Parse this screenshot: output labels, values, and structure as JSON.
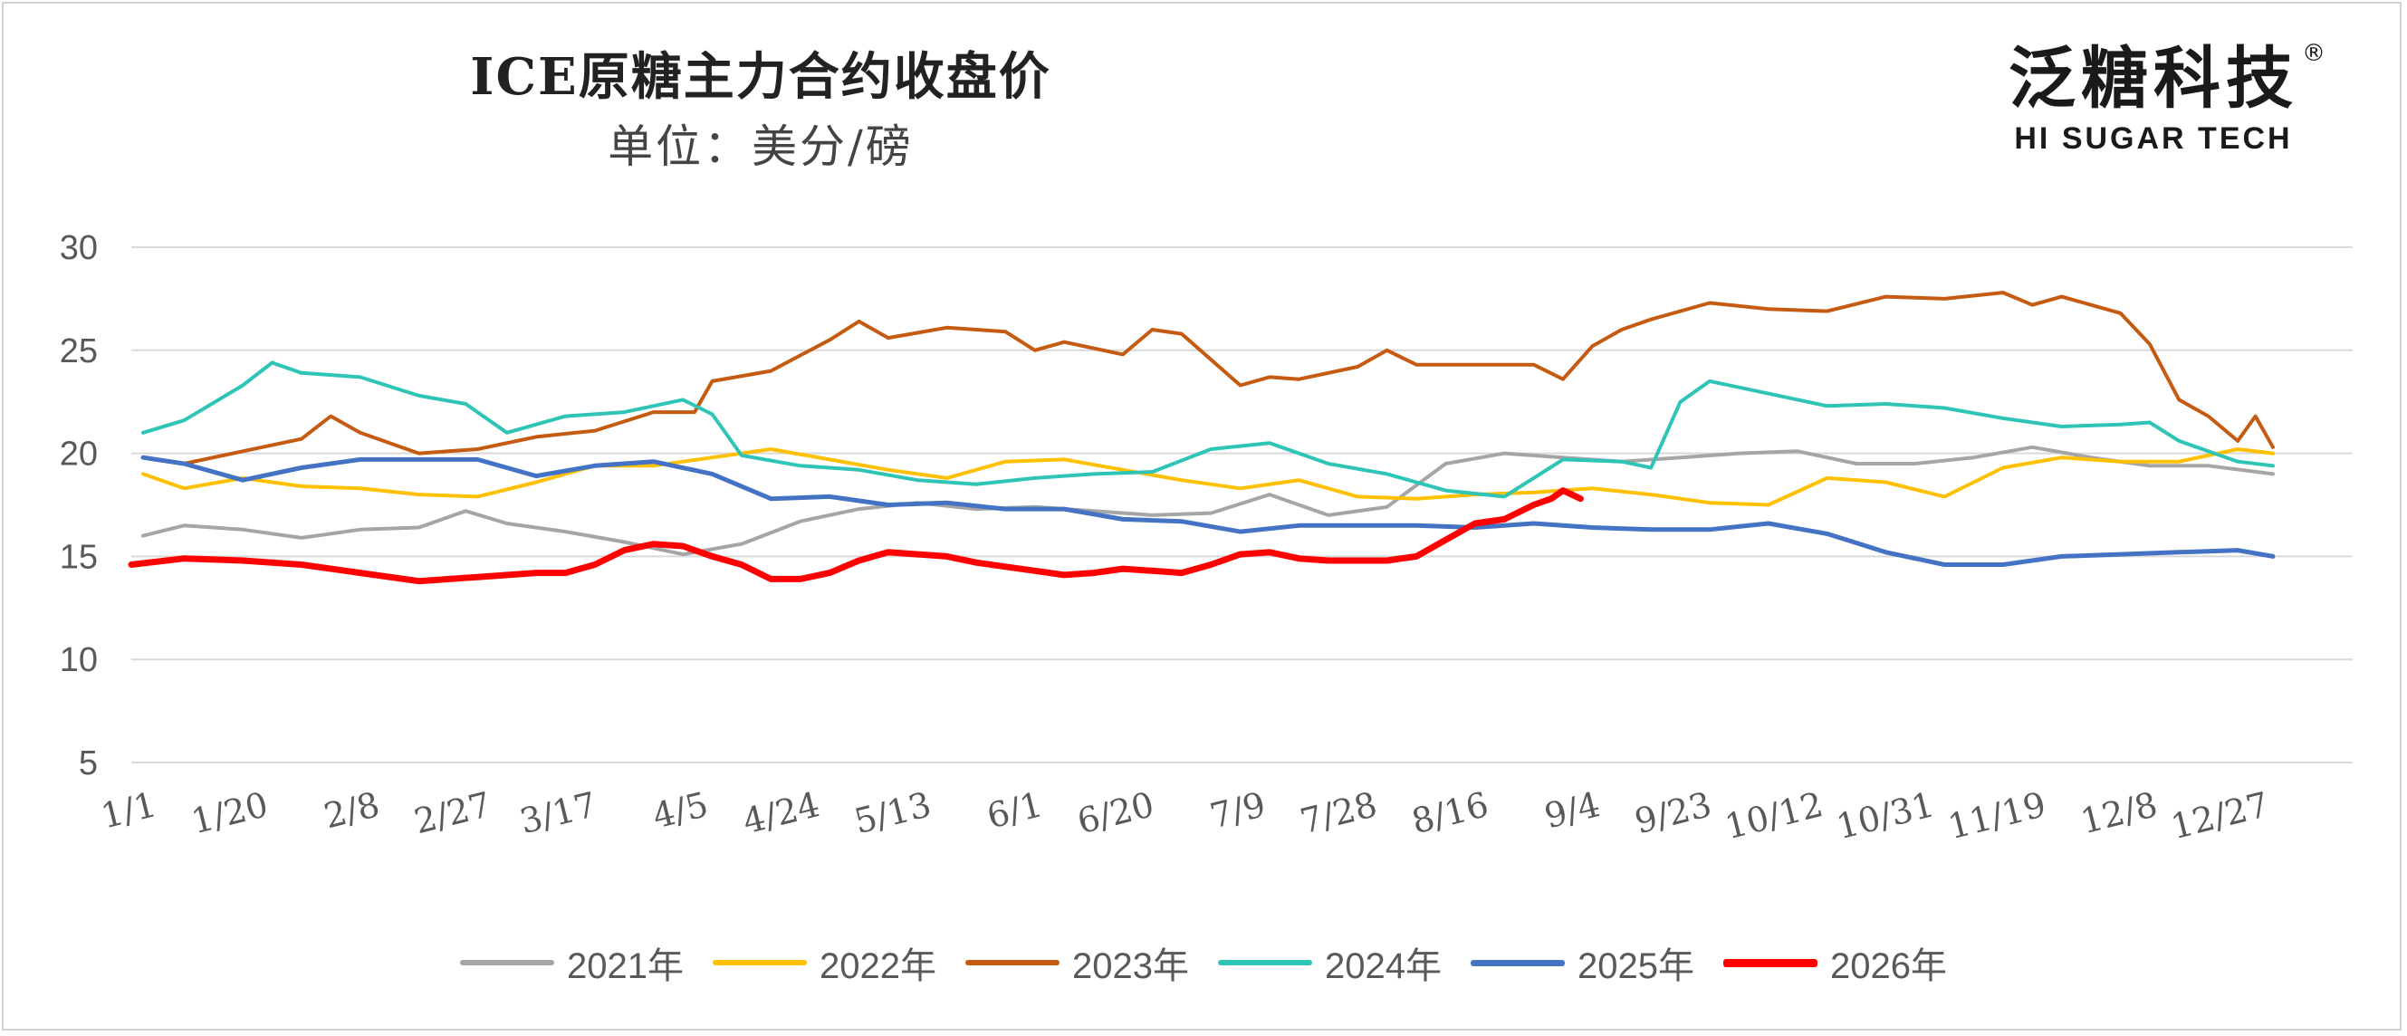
{
  "chart_data": {
    "type": "line",
    "title": "ICE原糖主力合约收盘价",
    "subtitle": "单位：美分/磅",
    "ylim": [
      5,
      30
    ],
    "yticks": [
      30,
      25,
      20,
      15,
      10,
      5
    ],
    "xlim": [
      1,
      366
    ],
    "xticks": [
      {
        "label": "1/1",
        "day": 1
      },
      {
        "label": "1/20",
        "day": 20
      },
      {
        "label": "2/8",
        "day": 39
      },
      {
        "label": "2/27",
        "day": 58
      },
      {
        "label": "3/17",
        "day": 76
      },
      {
        "label": "4/5",
        "day": 95
      },
      {
        "label": "4/24",
        "day": 114
      },
      {
        "label": "5/13",
        "day": 133
      },
      {
        "label": "6/1",
        "day": 152
      },
      {
        "label": "6/20",
        "day": 171
      },
      {
        "label": "7/9",
        "day": 190
      },
      {
        "label": "7/28",
        "day": 209
      },
      {
        "label": "8/16",
        "day": 228
      },
      {
        "label": "9/4",
        "day": 247
      },
      {
        "label": "9/23",
        "day": 266
      },
      {
        "label": "10/12",
        "day": 285
      },
      {
        "label": "10/31",
        "day": 304
      },
      {
        "label": "11/19",
        "day": 323
      },
      {
        "label": "12/8",
        "day": 342
      },
      {
        "label": "12/27",
        "day": 361
      }
    ],
    "grid": true,
    "legend_position": "bottom",
    "series": [
      {
        "name": "2021年",
        "color": "#a5a5a5",
        "width": 4,
        "x": [
          3,
          10,
          20,
          30,
          40,
          50,
          58,
          65,
          75,
          85,
          95,
          105,
          115,
          125,
          135,
          145,
          155,
          165,
          175,
          185,
          195,
          205,
          215,
          225,
          235,
          245,
          255,
          265,
          275,
          285,
          295,
          305,
          315,
          325,
          335,
          345,
          355,
          366
        ],
        "y": [
          16,
          16.5,
          16.3,
          15.9,
          16.3,
          16.4,
          17.2,
          16.6,
          16.2,
          15.7,
          15.1,
          15.6,
          16.7,
          17.3,
          17.6,
          17.3,
          17.4,
          17.2,
          17,
          17.1,
          18,
          17,
          17.4,
          19.5,
          20,
          19.8,
          19.6,
          19.8,
          20,
          20.1,
          19.5,
          19.5,
          19.8,
          20.3,
          19.8,
          19.4,
          19.4,
          19
        ]
      },
      {
        "name": "2022年",
        "color": "#ffc000",
        "width": 4,
        "x": [
          3,
          10,
          20,
          30,
          40,
          50,
          60,
          70,
          80,
          90,
          100,
          110,
          120,
          130,
          140,
          150,
          160,
          170,
          180,
          190,
          200,
          210,
          220,
          230,
          240,
          250,
          260,
          270,
          280,
          290,
          300,
          310,
          320,
          330,
          340,
          350,
          360,
          366
        ],
        "y": [
          19,
          18.3,
          18.8,
          18.4,
          18.3,
          18,
          17.9,
          18.6,
          19.4,
          19.4,
          19.8,
          20.2,
          19.7,
          19.2,
          18.8,
          19.6,
          19.7,
          19.2,
          18.7,
          18.3,
          18.7,
          17.9,
          17.8,
          18,
          18.1,
          18.3,
          18,
          17.6,
          17.5,
          18.8,
          18.6,
          17.9,
          19.3,
          19.8,
          19.6,
          19.6,
          20.2,
          20
        ]
      },
      {
        "name": "2023年",
        "color": "#c55a11",
        "width": 4,
        "x": [
          3,
          10,
          20,
          30,
          35,
          40,
          50,
          60,
          70,
          80,
          90,
          97,
          100,
          110,
          120,
          125,
          130,
          140,
          150,
          155,
          160,
          170,
          175,
          180,
          190,
          195,
          200,
          210,
          215,
          220,
          230,
          240,
          245,
          250,
          255,
          260,
          270,
          280,
          290,
          300,
          310,
          320,
          325,
          330,
          340,
          345,
          350,
          355,
          360,
          363,
          366
        ],
        "y": [
          19.8,
          19.5,
          20.1,
          20.7,
          21.8,
          21,
          20,
          20.2,
          20.8,
          21.1,
          22,
          22,
          23.5,
          24,
          25.5,
          26.4,
          25.6,
          26.1,
          25.9,
          25,
          25.4,
          24.8,
          26,
          25.8,
          23.3,
          23.7,
          23.6,
          24.2,
          25,
          24.3,
          24.3,
          24.3,
          23.6,
          25.2,
          26,
          26.5,
          27.3,
          27,
          26.9,
          27.6,
          27.5,
          27.8,
          27.2,
          27.6,
          26.8,
          25.3,
          22.6,
          21.8,
          20.6,
          21.8,
          20.3
        ]
      },
      {
        "name": "2024年",
        "color": "#2ec4b6",
        "width": 4,
        "x": [
          3,
          10,
          20,
          25,
          30,
          40,
          50,
          58,
          65,
          75,
          85,
          95,
          100,
          105,
          115,
          125,
          135,
          145,
          155,
          165,
          175,
          185,
          195,
          205,
          215,
          225,
          235,
          245,
          255,
          260,
          265,
          270,
          280,
          290,
          300,
          310,
          320,
          330,
          340,
          345,
          350,
          360,
          366
        ],
        "y": [
          21,
          21.6,
          23.3,
          24.4,
          23.9,
          23.7,
          22.8,
          22.4,
          21,
          21.8,
          22,
          22.6,
          21.9,
          19.9,
          19.4,
          19.2,
          18.7,
          18.5,
          18.8,
          19,
          19.1,
          20.2,
          20.5,
          19.5,
          19,
          18.2,
          17.9,
          19.7,
          19.6,
          19.3,
          22.5,
          23.5,
          22.9,
          22.3,
          22.4,
          22.2,
          21.7,
          21.3,
          21.4,
          21.5,
          20.6,
          19.6,
          19.4
        ]
      },
      {
        "name": "2025年",
        "color": "#4472c4",
        "width": 5,
        "x": [
          3,
          10,
          20,
          30,
          40,
          50,
          60,
          70,
          80,
          90,
          100,
          110,
          120,
          130,
          140,
          150,
          160,
          170,
          180,
          190,
          200,
          210,
          220,
          230,
          240,
          250,
          260,
          270,
          280,
          290,
          300,
          310,
          320,
          330,
          340,
          350,
          360,
          366
        ],
        "y": [
          19.8,
          19.5,
          18.7,
          19.3,
          19.7,
          19.7,
          19.7,
          18.9,
          19.4,
          19.6,
          19,
          17.8,
          17.9,
          17.5,
          17.6,
          17.3,
          17.3,
          16.8,
          16.7,
          16.2,
          16.5,
          16.5,
          16.5,
          16.4,
          16.6,
          16.4,
          16.3,
          16.3,
          16.6,
          16.1,
          15.2,
          14.6,
          14.6,
          15,
          15.1,
          15.2,
          15.3,
          15
        ]
      },
      {
        "name": "2026年",
        "color": "#ff0000",
        "width": 7,
        "x": [
          1,
          10,
          20,
          30,
          40,
          50,
          60,
          70,
          75,
          80,
          85,
          90,
          95,
          100,
          105,
          110,
          115,
          120,
          125,
          130,
          135,
          140,
          145,
          150,
          155,
          160,
          165,
          170,
          175,
          180,
          185,
          190,
          195,
          200,
          205,
          210,
          215,
          220,
          225,
          230,
          235,
          240,
          243,
          245,
          248
        ],
        "y": [
          14.6,
          14.9,
          14.8,
          14.6,
          14.2,
          13.8,
          14,
          14.2,
          14.2,
          14.6,
          15.3,
          15.6,
          15.5,
          15,
          14.6,
          13.9,
          13.9,
          14.2,
          14.8,
          15.2,
          15.1,
          15,
          14.7,
          14.5,
          14.3,
          14.1,
          14.2,
          14.4,
          14.3,
          14.2,
          14.6,
          15.1,
          15.2,
          14.9,
          14.8,
          14.8,
          14.8,
          15,
          15.8,
          16.6,
          16.8,
          17.5,
          17.8,
          18.2,
          17.8
        ]
      }
    ]
  },
  "logo": {
    "cn": "泛糖科技",
    "en": "HI SUGAR TECH",
    "reg": "®"
  }
}
